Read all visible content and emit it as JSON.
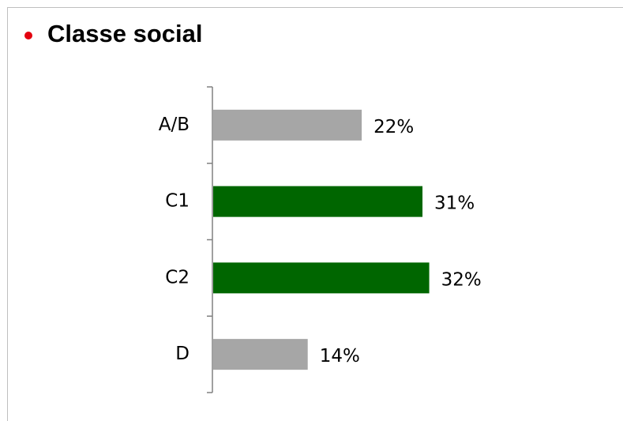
{
  "chart_data": {
    "type": "bar",
    "orientation": "horizontal",
    "title": "Classe social",
    "categories": [
      "A/B",
      "C1",
      "C2",
      "D"
    ],
    "values": [
      22,
      31,
      32,
      14
    ],
    "value_labels": [
      "22%",
      "31%",
      "32%",
      "14%"
    ],
    "colors": [
      "#a6a6a6",
      "#006600",
      "#006600",
      "#a6a6a6"
    ]
  }
}
